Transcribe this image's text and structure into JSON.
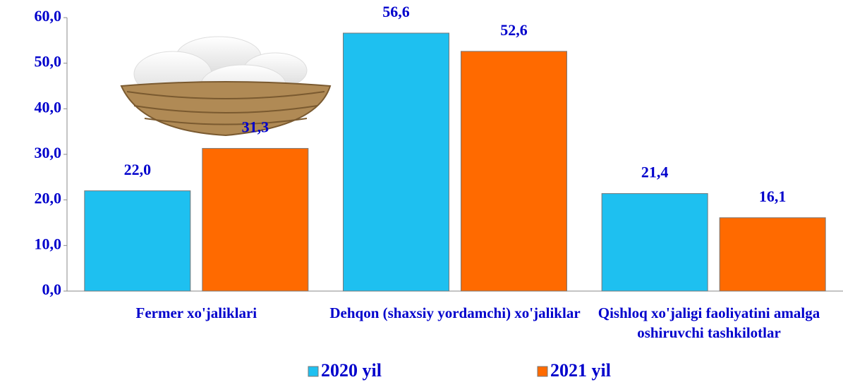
{
  "chart_data": {
    "type": "bar",
    "categories": [
      "Fermer xo'jaliklari",
      "Dehqon (shaxsiy yordamchi) xo'jaliklar",
      "Qishloq xo'jaligi faoliyatini amalga oshiruvchi tashkilotlar"
    ],
    "series": [
      {
        "name": "2020 yil",
        "color": "#1ec0f0",
        "values": [
          22.0,
          56.6,
          21.4
        ],
        "value_labels": [
          "22,0",
          "56,6",
          "21,4"
        ]
      },
      {
        "name": "2021 yil",
        "color": "#ff6a00",
        "values": [
          31.3,
          52.6,
          16.1
        ],
        "value_labels": [
          "31,3",
          "52,6",
          "16,1"
        ]
      }
    ],
    "ylim": [
      0,
      60
    ],
    "yticks": [
      {
        "value": 0,
        "label": "0,0"
      },
      {
        "value": 10,
        "label": "10,0"
      },
      {
        "value": 20,
        "label": "20,0"
      },
      {
        "value": 30,
        "label": "30,0"
      },
      {
        "value": 40,
        "label": "40,0"
      },
      {
        "value": 50,
        "label": "50,0"
      },
      {
        "value": 60,
        "label": "60,0"
      }
    ],
    "legend": "bottom"
  }
}
